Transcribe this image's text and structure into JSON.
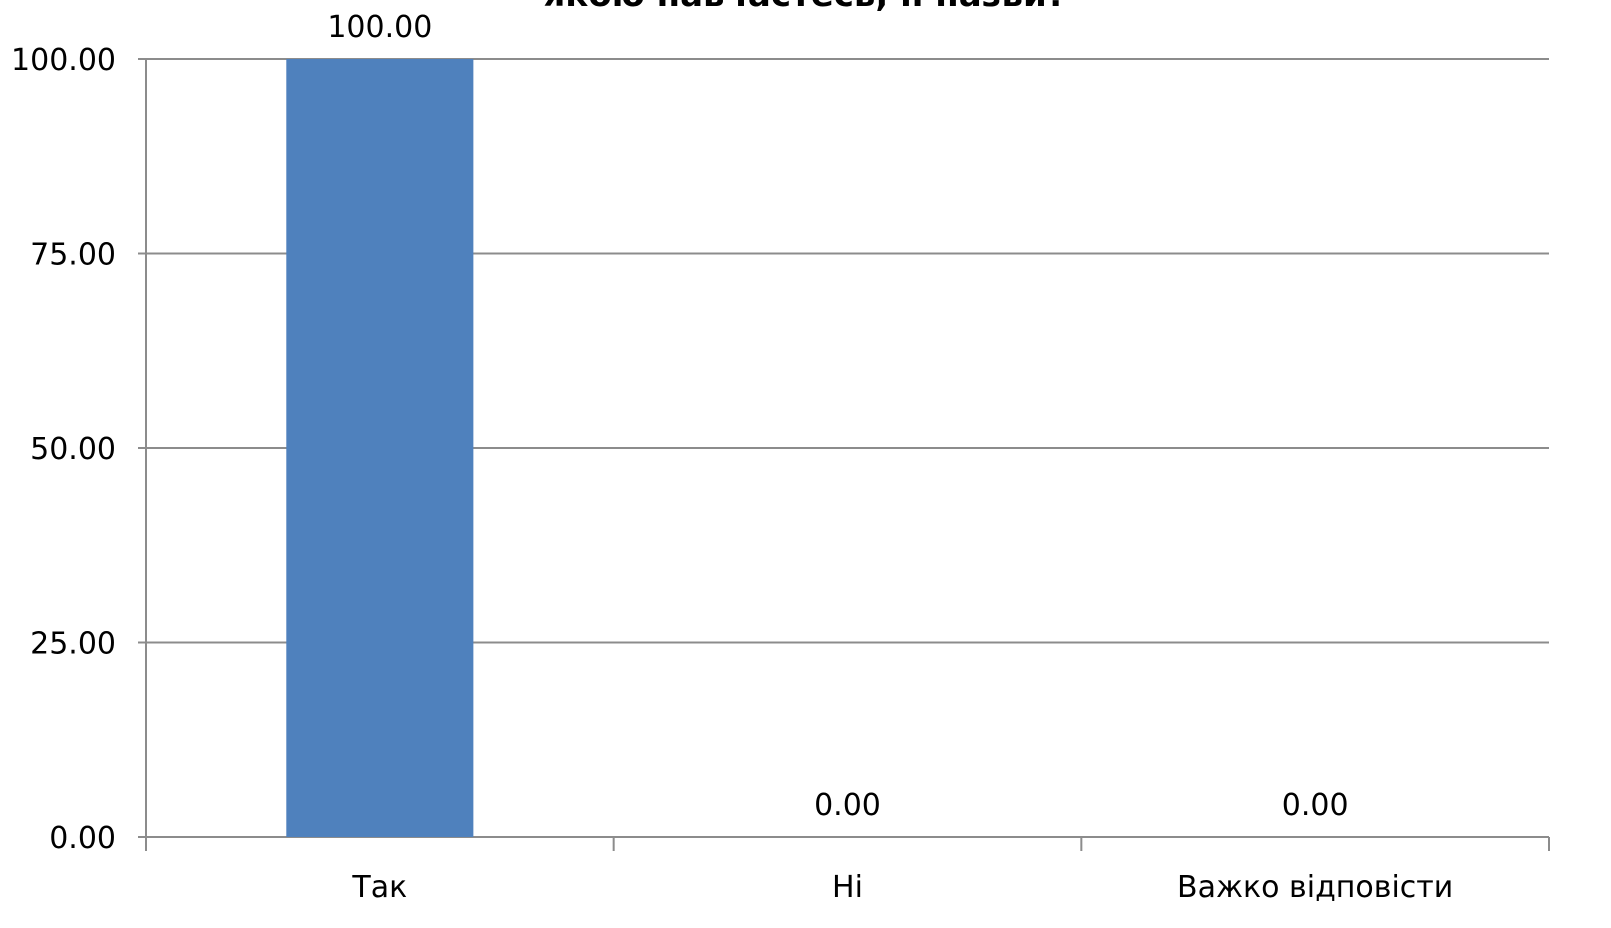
{
  "chart_data": {
    "type": "bar",
    "title_fragment": "якою навчаєтесь, її назви?",
    "categories": [
      "Так",
      "Ні",
      "Важко відповісти"
    ],
    "values": [
      100.0,
      0.0,
      0.0
    ],
    "value_labels": [
      "100.00",
      "0.00",
      "0.00"
    ],
    "y_ticks": [
      "0.00",
      "25.00",
      "50.00",
      "75.00",
      "100.00"
    ],
    "ylim": [
      0,
      100
    ],
    "xlabel": "",
    "ylabel": "",
    "grid": true,
    "legend": "none",
    "bar_color": "#4f81bd",
    "grid_color": "#8c8c8c"
  }
}
